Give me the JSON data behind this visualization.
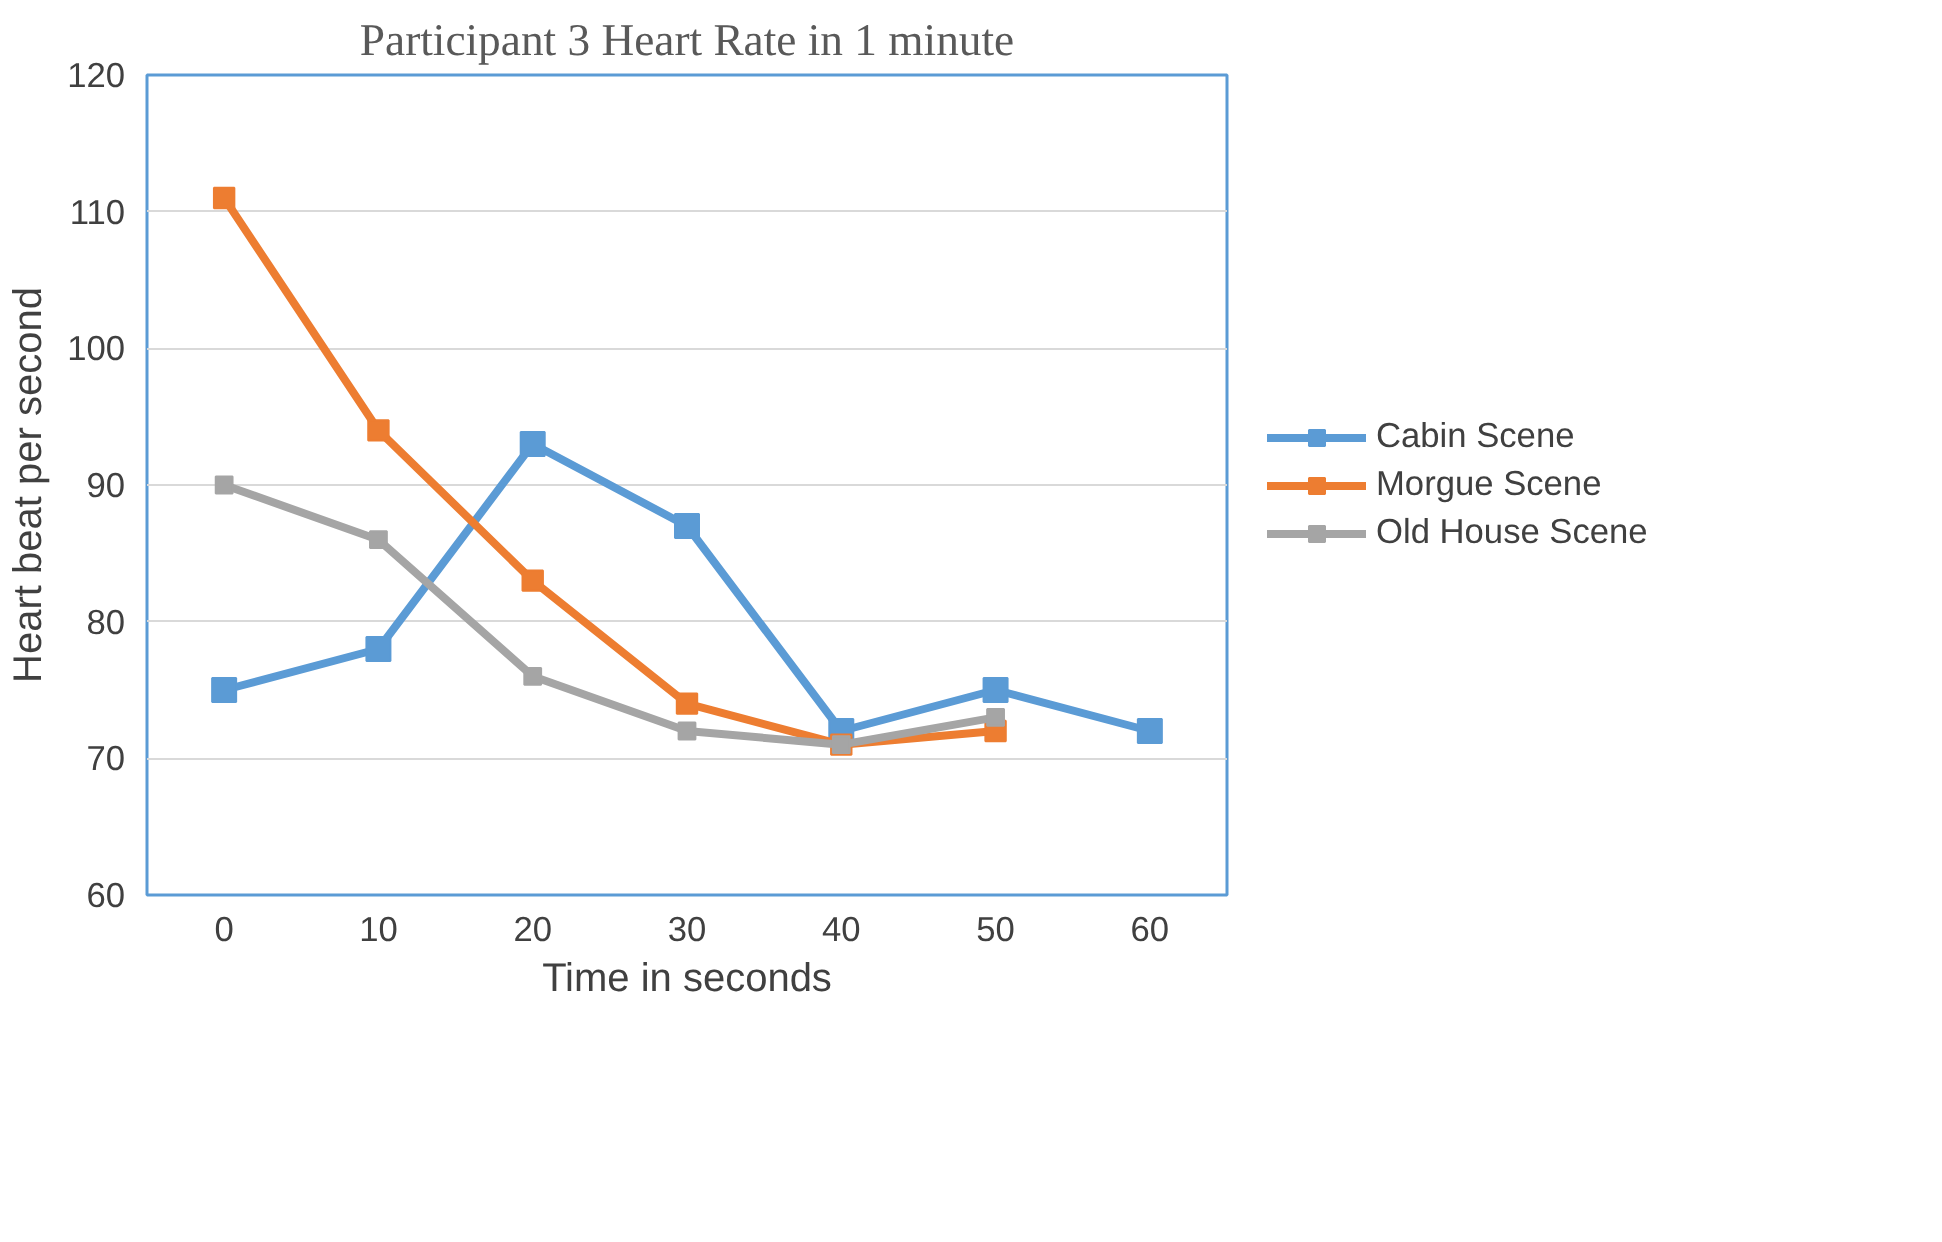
{
  "chart_data": {
    "type": "line",
    "title": "Participant 3 Heart Rate in 1 minute",
    "xlabel": "Time in seconds",
    "ylabel": "Heart beat per second",
    "categories": [
      "0",
      "10",
      "20",
      "30",
      "40",
      "50",
      "60"
    ],
    "ylim": [
      60,
      120
    ],
    "yticks": [
      60,
      70,
      80,
      90,
      100,
      110,
      120
    ],
    "grid": "y",
    "legend": "right",
    "marker": "square",
    "series": [
      {
        "name": "Cabin Scene",
        "color": "#5b9bd5",
        "values": [
          75,
          78,
          93,
          87,
          72,
          75,
          72
        ]
      },
      {
        "name": "Morgue Scene",
        "color": "#ed7d31",
        "values": [
          111,
          94,
          83,
          74,
          71,
          72,
          null
        ]
      },
      {
        "name": "Old House Scene",
        "color": "#a5a5a5",
        "values": [
          90,
          86,
          76,
          72,
          71,
          73,
          null
        ]
      }
    ]
  }
}
